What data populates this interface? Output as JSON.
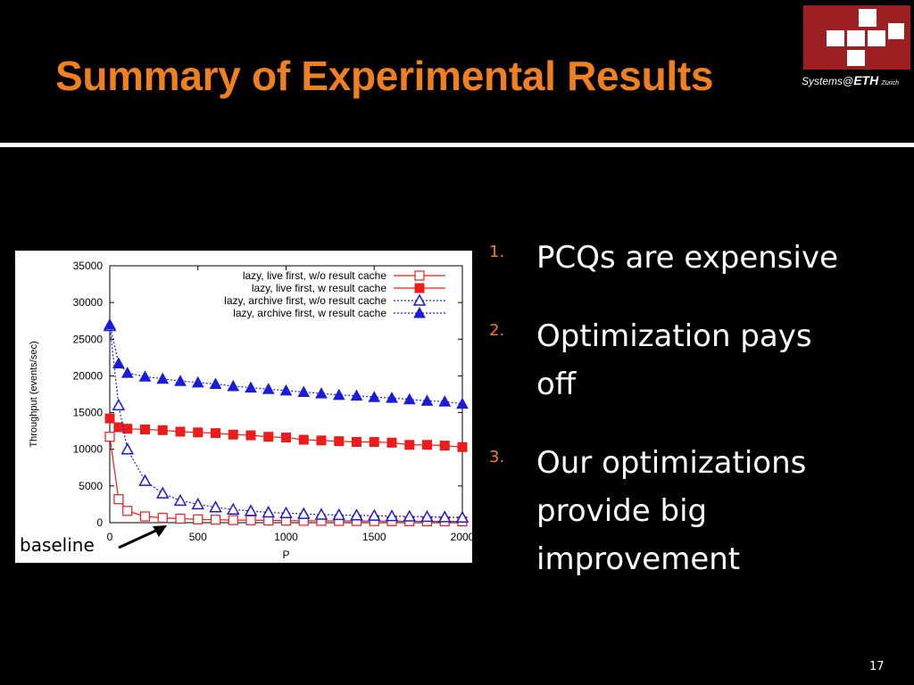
{
  "slide": {
    "title": "Summary of Experimental Results",
    "page_number": "17",
    "baseline_annotation": "baseline"
  },
  "logo": {
    "text_main": "Systems@",
    "text_bold": "ETH",
    "text_small": "Zürich",
    "color": "#9c1f22"
  },
  "bullets": [
    {
      "number": "1.",
      "text": "PCQs are expensive"
    },
    {
      "number": "2.",
      "text": "Optimization pays off"
    },
    {
      "number": "3.",
      "text": "Our optimizations provide big improvement"
    }
  ],
  "colors": {
    "title": "#f07f1e",
    "red_series": "#ee1b1b",
    "blue_series": "#1b1bdd"
  },
  "chart_data": {
    "type": "line",
    "xlabel": "P",
    "ylabel": "Throughput (events/sec)",
    "xlim": [
      0,
      2000
    ],
    "ylim": [
      0,
      35000
    ],
    "xticks": [
      0,
      500,
      1000,
      1500,
      2000
    ],
    "yticks": [
      0,
      5000,
      10000,
      15000,
      20000,
      25000,
      30000,
      35000
    ],
    "legend_position": "top-right",
    "x": [
      0,
      50,
      100,
      200,
      300,
      400,
      500,
      600,
      700,
      800,
      900,
      1000,
      1100,
      1200,
      1300,
      1400,
      1500,
      1600,
      1700,
      1800,
      1900,
      2000
    ],
    "series": [
      {
        "name": "lazy, live first, w/o result cache",
        "color": "#ee1b1b",
        "marker": "square-open",
        "line": "solid",
        "values": [
          11700,
          3200,
          1600,
          850,
          650,
          550,
          450,
          400,
          350,
          330,
          300,
          280,
          260,
          250,
          240,
          230,
          220,
          210,
          200,
          190,
          180,
          170
        ]
      },
      {
        "name": "lazy, live first, w result cache",
        "color": "#ee1b1b",
        "marker": "square-filled",
        "line": "solid",
        "values": [
          14200,
          13000,
          12800,
          12700,
          12600,
          12400,
          12300,
          12200,
          12000,
          11900,
          11700,
          11600,
          11300,
          11200,
          11100,
          11000,
          11000,
          10900,
          10600,
          10600,
          10500,
          10300
        ]
      },
      {
        "name": "lazy, archive first, w/o result cache",
        "color": "#1b1bdd",
        "marker": "triangle-open",
        "line": "dotted",
        "values": [
          26800,
          16000,
          10000,
          5700,
          4000,
          3000,
          2500,
          2100,
          1800,
          1600,
          1400,
          1300,
          1200,
          1100,
          1050,
          1000,
          950,
          900,
          850,
          800,
          750,
          700
        ]
      },
      {
        "name": "lazy, archive first, w result cache",
        "color": "#1b1bdd",
        "marker": "triangle-filled",
        "line": "dotted",
        "values": [
          27000,
          21700,
          20400,
          19900,
          19600,
          19300,
          19100,
          18900,
          18600,
          18400,
          18200,
          18000,
          17800,
          17600,
          17400,
          17300,
          17100,
          17000,
          16800,
          16600,
          16500,
          16200
        ]
      }
    ]
  }
}
